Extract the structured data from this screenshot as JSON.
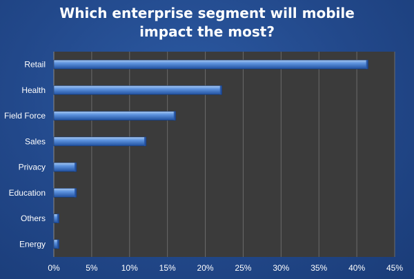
{
  "chart_data": {
    "type": "bar",
    "orientation": "horizontal",
    "title_lines": [
      "Which enterprise segment will mobile",
      "impact the most?"
    ],
    "title": "Which enterprise segment will mobile impact the most?",
    "xlabel": "",
    "ylabel": "",
    "categories": [
      "Retail",
      "Health",
      "Field Force",
      "Sales",
      "Privacy",
      "Education",
      "Others",
      "Energy"
    ],
    "values": [
      0.415,
      0.222,
      0.161,
      0.122,
      0.03,
      0.03,
      0.007,
      0.007
    ],
    "xlim": [
      0,
      0.45
    ],
    "xticks": [
      0,
      0.05,
      0.1,
      0.15,
      0.2,
      0.25,
      0.3,
      0.35,
      0.4,
      0.45
    ],
    "xtick_labels": [
      "0%",
      "5%",
      "10%",
      "15%",
      "20%",
      "25%",
      "30%",
      "35%",
      "40%",
      "45%"
    ],
    "grid": "vertical",
    "legend": "none",
    "colors": {
      "background": "#22488a",
      "plot_area": "#3b3b3b",
      "bar_light": "#a9c8f0",
      "bar_mid": "#4f86d6",
      "bar_dark": "#1f4f9e",
      "grid": "#6b6b6b",
      "text": "#ffffff"
    }
  }
}
